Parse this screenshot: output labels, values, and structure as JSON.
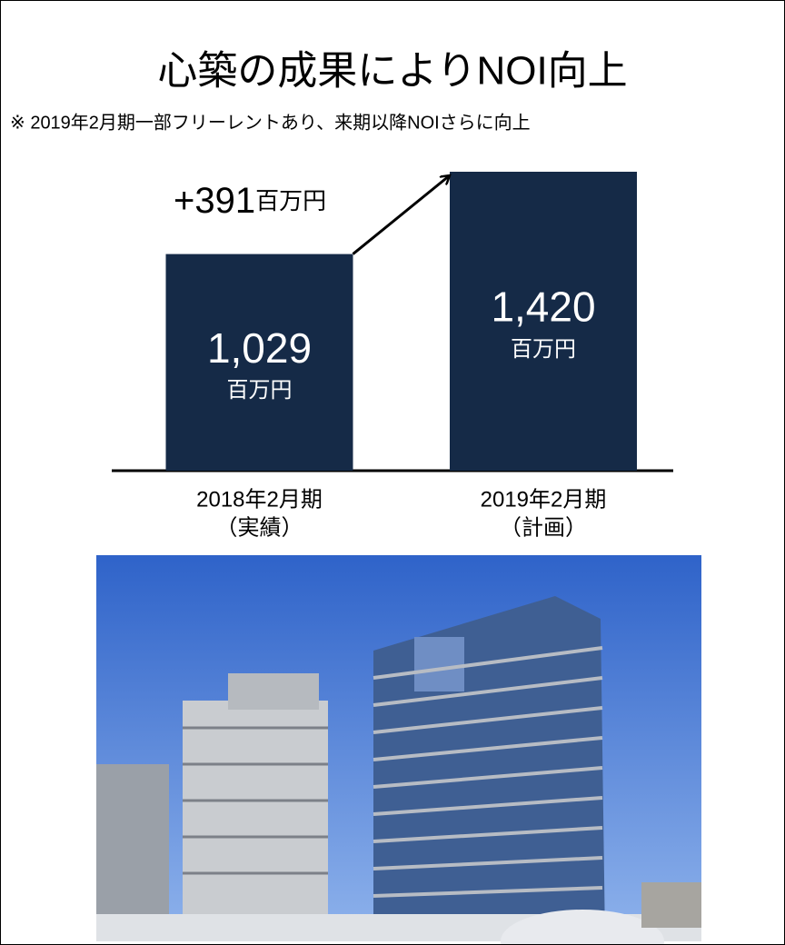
{
  "chart_data": {
    "type": "bar",
    "title": "心築の成果によりNOI向上",
    "subtitle": "※ 2019年2月期一部フリーレントあり、来期以降NOIさらに向上",
    "categories": [
      "2018年2月期",
      "2019年2月期"
    ],
    "category_notes": [
      "（実績）",
      "（計画）"
    ],
    "values": [
      1029,
      1420
    ],
    "value_labels": [
      "1,029",
      "1,420"
    ],
    "unit": "百万円",
    "annotation": {
      "text": "+391",
      "unit": "百万円"
    },
    "color": "#152a47",
    "ylim": [
      0,
      1420
    ]
  }
}
